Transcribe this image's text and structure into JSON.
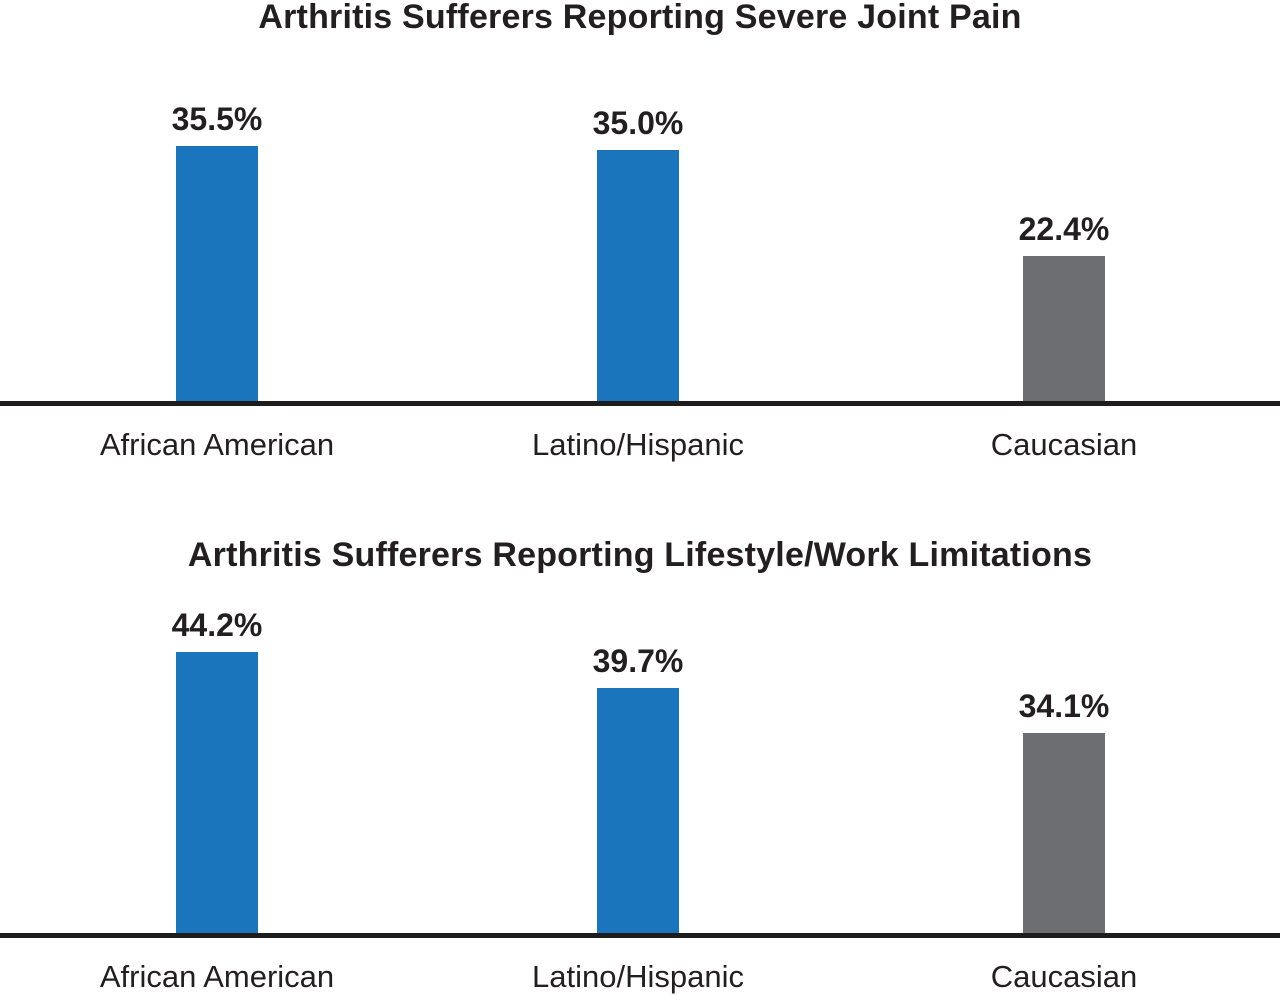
{
  "colors": {
    "bar_blue": "#1B75BC",
    "bar_gray": "#6D6E71",
    "text": "#231F20",
    "axis_line": "#1F1C1D",
    "background": "#FFFFFF"
  },
  "chart_data": [
    {
      "type": "bar",
      "title": "Arthritis Sufferers Reporting Severe Joint Pain",
      "categories": [
        "African American",
        "Latino/Hispanic",
        "Caucasian"
      ],
      "values": [
        35.5,
        35.0,
        22.4
      ],
      "value_labels": [
        "35.5%",
        "35.0%",
        "22.4%"
      ],
      "bar_colors": [
        "#1B75BC",
        "#1B75BC",
        "#6D6E71"
      ],
      "unit": "%",
      "xlabel": "",
      "ylabel": "",
      "grid": false,
      "value_axis_visible": false,
      "legend_position": "none"
    },
    {
      "type": "bar",
      "title": "Arthritis Sufferers Reporting Lifestyle/Work Limitations",
      "categories": [
        "African American",
        "Latino/Hispanic",
        "Caucasian"
      ],
      "values": [
        44.2,
        39.7,
        34.1
      ],
      "value_labels": [
        "44.2%",
        "39.7%",
        "34.1%"
      ],
      "bar_colors": [
        "#1B75BC",
        "#1B75BC",
        "#6D6E71"
      ],
      "unit": "%",
      "xlabel": "",
      "ylabel": "",
      "grid": false,
      "value_axis_visible": false,
      "legend_position": "none"
    }
  ]
}
